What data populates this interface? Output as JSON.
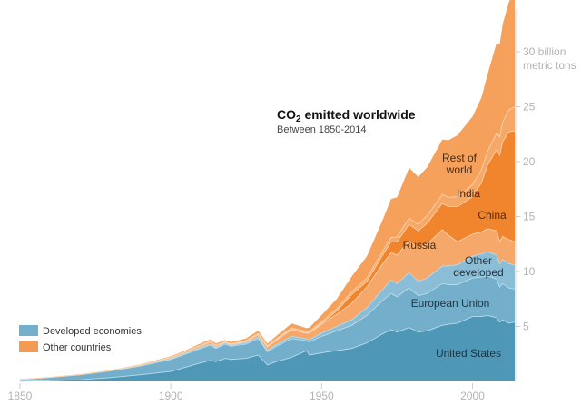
{
  "chart_data": {
    "type": "area",
    "stacked": true,
    "title": "CO2 emitted worldwide",
    "title_main": "CO",
    "title_sub": "2",
    "title_rest": " emitted worldwide",
    "subtitle": "Between 1850-2014",
    "xlabel": "",
    "ylabel": "billion metric tons",
    "xlim": [
      1850,
      2014
    ],
    "ylim": [
      0,
      35
    ],
    "x_ticks": [
      1850,
      1900,
      1950,
      2000
    ],
    "x_tick_labels": [
      "1850",
      "1900",
      "1950",
      "2000"
    ],
    "y_ticks": [
      5,
      10,
      15,
      20,
      25,
      30
    ],
    "y_tick_labels": [
      "5",
      "10",
      "15",
      "20",
      "25",
      "30 billion"
    ],
    "y_unit_label": "metric tons",
    "grid": false,
    "legend": {
      "position": "bottom-left",
      "entries": [
        {
          "label": "Developed economies",
          "color": "#73aecb"
        },
        {
          "label": "Other countries",
          "color": "#f39a55"
        }
      ]
    },
    "x": [
      1850,
      1860,
      1870,
      1880,
      1890,
      1900,
      1905,
      1910,
      1913,
      1915,
      1918,
      1920,
      1925,
      1929,
      1932,
      1935,
      1940,
      1945,
      1946,
      1950,
      1955,
      1960,
      1965,
      1970,
      1973,
      1975,
      1979,
      1982,
      1985,
      1990,
      1992,
      1995,
      2000,
      2003,
      2005,
      2008,
      2009,
      2010,
      2012,
      2014
    ],
    "series": [
      {
        "name": "United States",
        "group": "Developed economies",
        "color": "#4f97b7",
        "values": [
          0.02,
          0.06,
          0.15,
          0.35,
          0.6,
          0.9,
          1.3,
          1.7,
          1.9,
          1.8,
          2.1,
          2.0,
          2.1,
          2.4,
          1.5,
          1.8,
          2.2,
          2.8,
          2.4,
          2.6,
          2.8,
          3.0,
          3.5,
          4.3,
          4.7,
          4.5,
          4.9,
          4.5,
          4.6,
          5.1,
          5.2,
          5.3,
          5.9,
          5.9,
          6.0,
          5.8,
          5.4,
          5.6,
          5.3,
          5.4
        ]
      },
      {
        "name": "European Union",
        "group": "Developed economies",
        "color": "#73aecb",
        "values": [
          0.15,
          0.3,
          0.45,
          0.6,
          0.8,
          1.1,
          1.2,
          1.3,
          1.4,
          1.2,
          1.3,
          1.2,
          1.3,
          1.5,
          1.2,
          1.4,
          1.7,
          0.9,
          1.2,
          1.5,
          1.8,
          2.1,
          2.5,
          3.0,
          3.3,
          3.2,
          3.6,
          3.3,
          3.4,
          3.8,
          3.6,
          3.5,
          3.5,
          3.6,
          3.6,
          3.5,
          3.2,
          3.3,
          3.2,
          3.0
        ]
      },
      {
        "name": "Other developed",
        "group": "Developed economies",
        "color": "#8cbdd6",
        "values": [
          0.0,
          0.0,
          0.01,
          0.02,
          0.03,
          0.05,
          0.07,
          0.1,
          0.1,
          0.1,
          0.1,
          0.1,
          0.12,
          0.15,
          0.12,
          0.15,
          0.2,
          0.18,
          0.2,
          0.3,
          0.4,
          0.5,
          0.7,
          1.0,
          1.2,
          1.2,
          1.4,
          1.3,
          1.4,
          1.6,
          1.7,
          1.8,
          2.0,
          2.1,
          2.2,
          2.2,
          2.1,
          2.2,
          2.2,
          2.2
        ]
      },
      {
        "name": "Russia",
        "group": "Other countries",
        "color": "#f5a86a",
        "values": [
          0.0,
          0.0,
          0.01,
          0.02,
          0.05,
          0.1,
          0.12,
          0.15,
          0.17,
          0.12,
          0.05,
          0.05,
          0.1,
          0.2,
          0.3,
          0.4,
          0.6,
          0.5,
          0.6,
          0.8,
          1.1,
          1.5,
          1.9,
          2.3,
          2.5,
          2.6,
          2.9,
          3.0,
          3.1,
          3.3,
          2.8,
          2.1,
          2.0,
          2.0,
          2.1,
          2.2,
          2.0,
          2.1,
          2.2,
          2.1
        ]
      },
      {
        "name": "China",
        "group": "Other countries",
        "color": "#f0852d",
        "values": [
          0.0,
          0.0,
          0.0,
          0.0,
          0.01,
          0.02,
          0.02,
          0.03,
          0.03,
          0.03,
          0.03,
          0.03,
          0.04,
          0.05,
          0.05,
          0.06,
          0.08,
          0.06,
          0.06,
          0.08,
          0.3,
          0.8,
          0.5,
          0.8,
          1.0,
          1.2,
          1.5,
          1.6,
          1.9,
          2.4,
          2.6,
          3.2,
          3.4,
          4.5,
          5.8,
          7.4,
          7.9,
          8.6,
          9.8,
          10.1
        ]
      },
      {
        "name": "India",
        "group": "Other countries",
        "color": "#f6a868",
        "values": [
          0.0,
          0.0,
          0.0,
          0.01,
          0.02,
          0.03,
          0.03,
          0.04,
          0.05,
          0.05,
          0.05,
          0.05,
          0.06,
          0.07,
          0.07,
          0.08,
          0.1,
          0.1,
          0.1,
          0.15,
          0.2,
          0.25,
          0.3,
          0.35,
          0.4,
          0.45,
          0.55,
          0.6,
          0.7,
          0.8,
          0.85,
          0.9,
          1.1,
          1.15,
          1.25,
          1.5,
          1.65,
          1.8,
          2.0,
          2.2
        ]
      },
      {
        "name": "Rest of world",
        "group": "Other countries",
        "color": "#f5a15c",
        "values": [
          0.0,
          0.0,
          0.01,
          0.02,
          0.05,
          0.08,
          0.1,
          0.15,
          0.18,
          0.15,
          0.14,
          0.16,
          0.2,
          0.25,
          0.2,
          0.25,
          0.4,
          0.3,
          0.35,
          0.6,
          0.9,
          1.4,
          2.0,
          2.8,
          3.5,
          3.6,
          4.6,
          4.3,
          4.4,
          5.0,
          5.2,
          5.6,
          6.2,
          6.6,
          7.0,
          8.2,
          8.4,
          8.9,
          9.8,
          10.5
        ]
      }
    ],
    "annotations": [
      {
        "label": "Rest of world",
        "lines": [
          "Rest of",
          "world"
        ]
      },
      {
        "label": "India",
        "lines": [
          "India"
        ]
      },
      {
        "label": "China",
        "lines": [
          "China"
        ]
      },
      {
        "label": "Russia",
        "lines": [
          "Russia"
        ]
      },
      {
        "label": "Other developed",
        "lines": [
          "Other",
          "developed"
        ]
      },
      {
        "label": "European Union",
        "lines": [
          "European Union"
        ]
      },
      {
        "label": "United States",
        "lines": [
          "United States"
        ]
      }
    ]
  }
}
